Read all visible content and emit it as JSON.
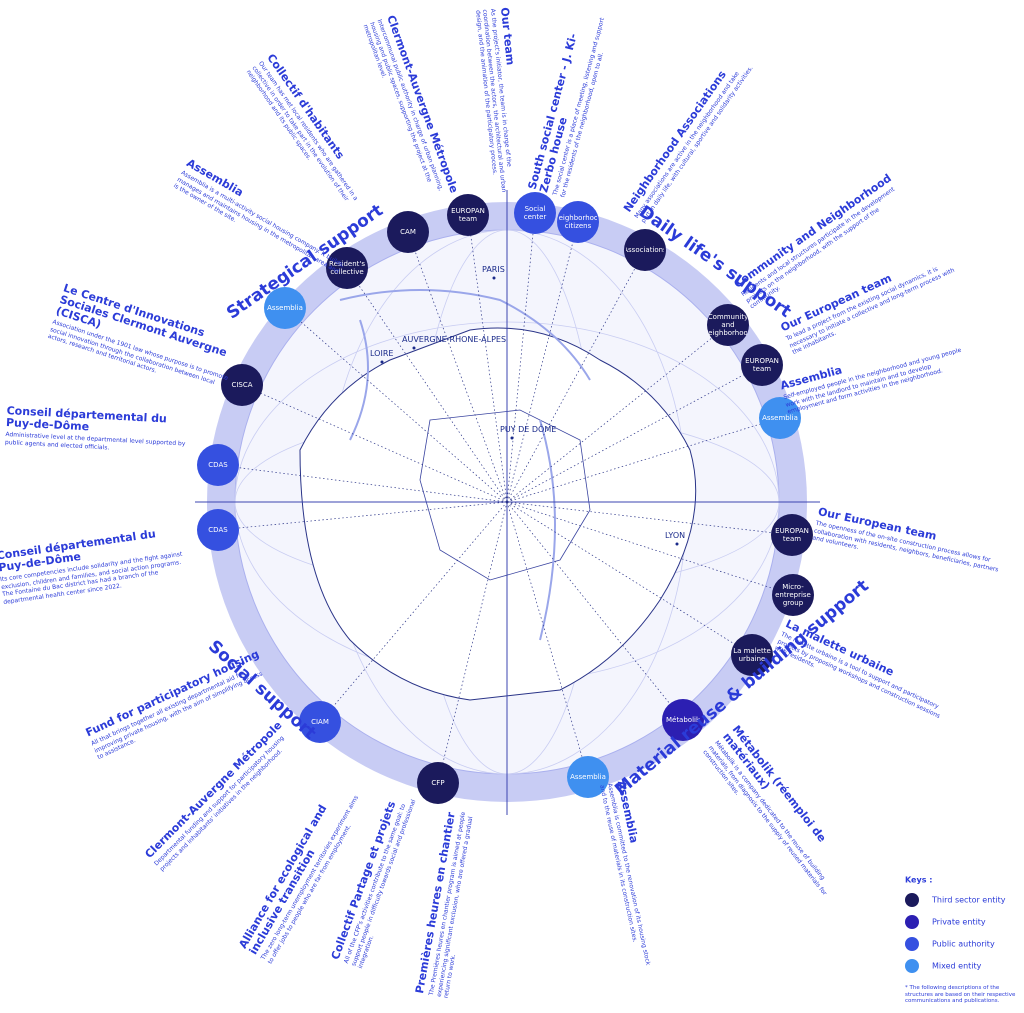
{
  "sections": [
    "Strategical support",
    "Daily life's support",
    "Social support",
    "Material reuse & building support"
  ],
  "types": {
    "third": "#1b1a5c",
    "private": "#2c1fb2",
    "public": "#3550e0",
    "mixed": "#3f90f0"
  },
  "nodes": [
    {
      "label": "EUROPAN team",
      "type": "third"
    },
    {
      "label": "CAM",
      "type": "third"
    },
    {
      "label": "Resident's collective",
      "type": "third"
    },
    {
      "label": "Assemblia",
      "type": "mixed"
    },
    {
      "label": "CISCA",
      "type": "third"
    },
    {
      "label": "CDAS",
      "type": "public"
    },
    {
      "label": "CDAS",
      "type": "public"
    },
    {
      "label": "CIAM",
      "type": "public"
    },
    {
      "label": "CFP",
      "type": "third"
    },
    {
      "label": "Assemblia",
      "type": "mixed"
    },
    {
      "label": "Métabolik",
      "type": "private"
    },
    {
      "label": "La malette urbaine",
      "type": "third"
    },
    {
      "label": "Micro-entreprise group",
      "type": "third"
    },
    {
      "label": "EUROPAN team",
      "type": "third"
    },
    {
      "label": "Assemblia",
      "type": "mixed"
    },
    {
      "label": "EUROPAN team",
      "type": "third"
    },
    {
      "label": "Community and neighborhood",
      "type": "third"
    },
    {
      "label": "Associations",
      "type": "third"
    },
    {
      "label": "Neighborhood citizens",
      "type": "public"
    },
    {
      "label": "Social center",
      "type": "public"
    }
  ],
  "cities": [
    "PARIS",
    "LYON",
    "PUY DE DÔME",
    "LOIRE",
    "AUVERGNE-RHONE-ALPES"
  ],
  "descriptions": [
    {
      "title": "Clermont-Auvergne Métropole",
      "text": "Intercommunal public authority in charge of urban planning, housing and public spaces, supporting the project at the metropolitan level."
    },
    {
      "title": "Our team",
      "text": "As the project's initiator, the team is in charge of the coordination between the actors, the architectural and urban design, and the animation of the participatory process."
    },
    {
      "title": "Collectif d'habitants",
      "text": "Our team has met local residents who are gathered in a collective in order to take part in the evolution of their neighborhood and its public spaces."
    },
    {
      "title": "Assemblia",
      "text": "Assemblia is a multi-activity social housing company. It builds, manages and maintains housing in the metropolitan area and is the owner of the site."
    },
    {
      "title": "Le Centre d'Innovations Sociales Clermont Auvergne (CISCA)",
      "text": "Association under the 1901 law whose purpose is to promote social innovation through the collaboration between local actors, research and territorial actors."
    },
    {
      "title": "Conseil départemental du Puy-de-Dôme",
      "text": "Administrative level at the departmental level supported by public agents and elected officials."
    },
    {
      "title": "Conseil départemental du Puy-de-Dôme",
      "text": "Its core competencies include solidarity and the fight against exclusion, children and families, and social action programs. The Fontaine du Bac district has had a branch of the departmental health center since 2022."
    },
    {
      "title": "Fund for participatory housing",
      "text": "All that brings together all existing departmental aid for improving private housing, with the aim of simplifying access to assistance."
    },
    {
      "title": "Clermont-Auvergne Métropole",
      "text": "Departmental funding and support for participatory housing projects and inhabitants' initiatives in the neighborhood."
    },
    {
      "title": "Alliance for ecological and inclusive transition",
      "text": "The zero long-term unemployment territories experiment aims to offer jobs to people who are far from employment."
    },
    {
      "title": "Collectif Partage et projets",
      "text": "All of the CFP's activities contribute to the same goal: to support people in difficulty towards social and professional integration."
    },
    {
      "title": "Premières heures en chantier",
      "text": "The Premières heures en chantier program is aimed at people experiencing significant exclusion, who are offered a gradual return to work."
    },
    {
      "title": "Assemblia",
      "text": "Assemblia is committed to the renovation of its housing stock and to the reuse of materials in its construction sites."
    },
    {
      "title": "Métabolik (réemploi de matériaux)",
      "text": "Métabolik is a company dedicated to the reuse of building materials, from diagnosis to the supply of reused materials for construction sites."
    },
    {
      "title": "La malette urbaine",
      "text": "The malette urbaine is a tool to support and participatory projects by proposing workshops and construction sessions with residents."
    },
    {
      "title": "Our European team",
      "text": "The openness of the on-site construction process allows for collaboration with residents, neighbors, beneficiaries, partners and volunteers."
    },
    {
      "title": "Assemblia",
      "text": "Self-employed people in the neighborhood and young people work with the landlord to maintain and to develop employment and form activities in the neighborhood."
    },
    {
      "title": "Our European team",
      "text": "To lead a project from the existing social dynamics, it is necessary to initiate a collective and long-term process with the inhabitants."
    },
    {
      "title": "Community and Neighborhood",
      "text": "Residents and local structures participate in the development projects on the neighborhood, with the support of the community."
    },
    {
      "title": "Neighborhood Associations",
      "text": "Many associations are active in the neighborhood and take part in daily life, with cultural, sportive and solidarity activities."
    },
    {
      "title": "South social center - J. Ki-Zerbo house",
      "text": "The social center is a place of meeting, listening and support for the residents of the neighborhood, open to all."
    }
  ],
  "keys": {
    "title": "Keys :",
    "items": [
      {
        "label": "Third sector entity",
        "type": "third"
      },
      {
        "label": "Private entity",
        "type": "private"
      },
      {
        "label": "Public authority",
        "type": "public"
      },
      {
        "label": "Mixed entity",
        "type": "mixed"
      }
    ],
    "note": "* The following descriptions of the structures are based on their respective communications and publications."
  }
}
